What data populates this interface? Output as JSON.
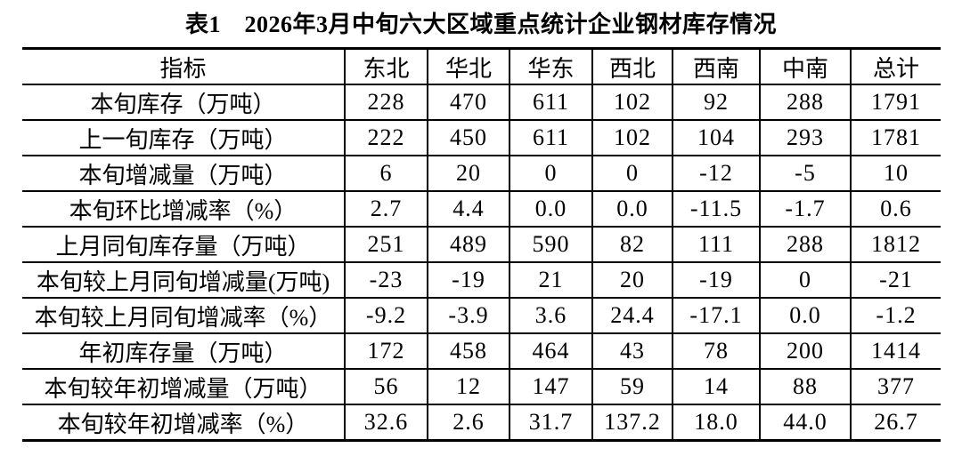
{
  "title": "表1　2026年3月中旬六大区域重点统计企业钢材库存情况",
  "table": {
    "columns": [
      "指标",
      "东北",
      "华北",
      "华东",
      "西北",
      "西南",
      "中南",
      "总计"
    ],
    "rows": [
      {
        "label": "本旬库存（万吨）",
        "values": [
          "228",
          "470",
          "611",
          "102",
          "92",
          "288",
          "1791"
        ]
      },
      {
        "label": "上一旬库存（万吨）",
        "values": [
          "222",
          "450",
          "611",
          "102",
          "104",
          "293",
          "1781"
        ]
      },
      {
        "label": "本旬增减量（万吨）",
        "values": [
          "6",
          "20",
          "0",
          "0",
          "-12",
          "-5",
          "10"
        ]
      },
      {
        "label": "本旬环比增减率（%）",
        "values": [
          "2.7",
          "4.4",
          "0.0",
          "0.0",
          "-11.5",
          "-1.7",
          "0.6"
        ]
      },
      {
        "label": "上月同旬库存量（万吨）",
        "values": [
          "251",
          "489",
          "590",
          "82",
          "111",
          "288",
          "1812"
        ]
      },
      {
        "label": "本旬较上月同旬增减量(万吨)",
        "values": [
          "-23",
          "-19",
          "21",
          "20",
          "-19",
          "0",
          "-21"
        ]
      },
      {
        "label": "本旬较上月同旬增减率（%）",
        "values": [
          "-9.2",
          "-3.9",
          "3.6",
          "24.4",
          "-17.1",
          "0.0",
          "-1.2"
        ]
      },
      {
        "label": "年初库存量（万吨）",
        "values": [
          "172",
          "458",
          "464",
          "43",
          "78",
          "200",
          "1414"
        ]
      },
      {
        "label": "本旬较年初增减量（万吨）",
        "values": [
          "56",
          "12",
          "147",
          "59",
          "14",
          "88",
          "377"
        ]
      },
      {
        "label": "本旬较年初增减率（%）",
        "values": [
          "32.6",
          "2.6",
          "31.7",
          "137.2",
          "18.0",
          "44.0",
          "26.7"
        ]
      }
    ]
  },
  "chart_data": {
    "type": "table",
    "title": "表1　2026年3月中旬六大区域重点统计企业钢材库存情况",
    "columns": [
      "指标",
      "东北",
      "华北",
      "华东",
      "西北",
      "西南",
      "中南",
      "总计"
    ],
    "rows": [
      [
        "本旬库存（万吨）",
        228,
        470,
        611,
        102,
        92,
        288,
        1791
      ],
      [
        "上一旬库存（万吨）",
        222,
        450,
        611,
        102,
        104,
        293,
        1781
      ],
      [
        "本旬增减量（万吨）",
        6,
        20,
        0,
        0,
        -12,
        -5,
        10
      ],
      [
        "本旬环比增减率（%）",
        2.7,
        4.4,
        0.0,
        0.0,
        -11.5,
        -1.7,
        0.6
      ],
      [
        "上月同旬库存量（万吨）",
        251,
        489,
        590,
        82,
        111,
        288,
        1812
      ],
      [
        "本旬较上月同旬增减量(万吨)",
        -23,
        -19,
        21,
        20,
        -19,
        0,
        -21
      ],
      [
        "本旬较上月同旬增减率（%）",
        -9.2,
        -3.9,
        3.6,
        24.4,
        -17.1,
        0.0,
        -1.2
      ],
      [
        "年初库存量（万吨）",
        172,
        458,
        464,
        43,
        78,
        200,
        1414
      ],
      [
        "本旬较年初增减量（万吨）",
        56,
        12,
        147,
        59,
        14,
        88,
        377
      ],
      [
        "本旬较年初增减率（%）",
        32.6,
        2.6,
        31.7,
        137.2,
        18.0,
        44.0,
        26.7
      ]
    ]
  }
}
